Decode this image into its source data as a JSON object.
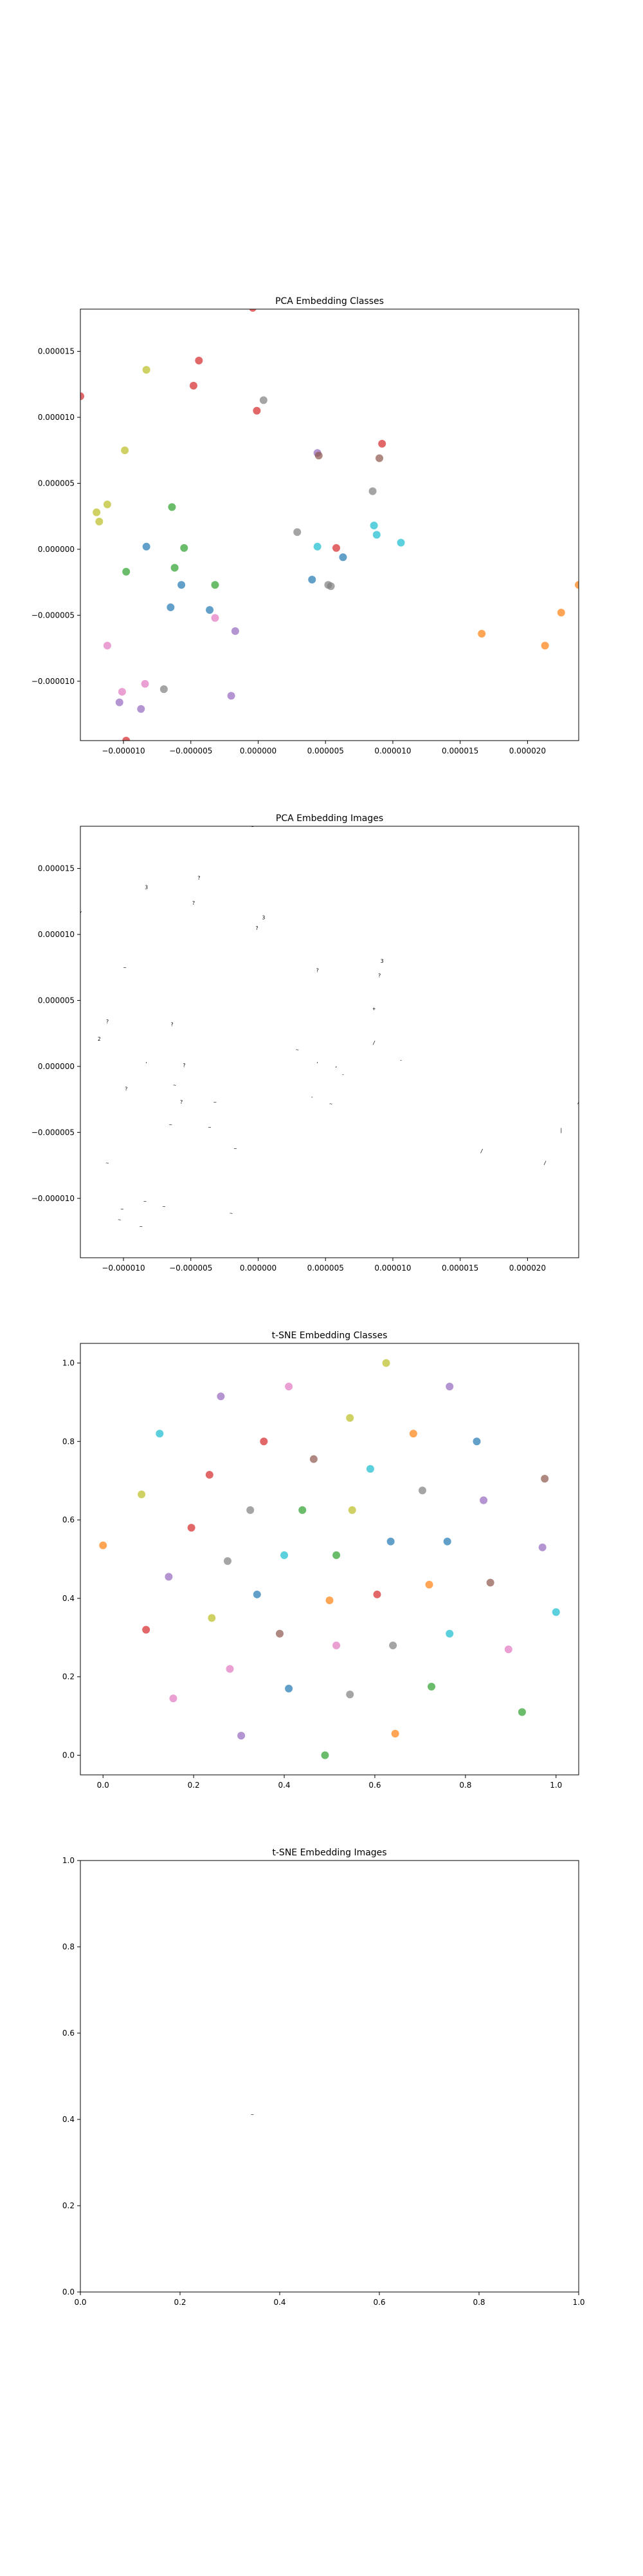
{
  "palette": [
    "#1f77b4",
    "#ff7f0e",
    "#2ca02c",
    "#d62728",
    "#9467bd",
    "#8c564b",
    "#e377c2",
    "#7f7f7f",
    "#bcbd22",
    "#17becf"
  ],
  "chart_data": [
    {
      "type": "scatter",
      "title": "PCA Embedding Classes",
      "markers": "dots",
      "xlim": [
        -1.32e-05,
        2.38e-05
      ],
      "ylim": [
        -1.45e-05,
        1.82e-05
      ],
      "xticks": [
        -1e-05,
        -5e-06,
        0.0,
        5e-06,
        1e-05,
        1.5e-05,
        2e-05
      ],
      "xtick_labels": [
        "−0.000010",
        "−0.000005",
        "0.000000",
        "0.000005",
        "0.000010",
        "0.000015",
        "0.000020"
      ],
      "yticks": [
        -1e-05,
        -5e-06,
        0.0,
        5e-06,
        1e-05,
        1.5e-05
      ],
      "ytick_labels": [
        "−0.000010",
        "−0.000005",
        "0.000000",
        "0.000005",
        "0.000010",
        "0.000015"
      ],
      "points": [
        {
          "x": -1.32e-05,
          "y": 1.16e-05,
          "c": 3
        },
        {
          "x": -4e-07,
          "y": 1.83e-05,
          "c": 3
        },
        {
          "x": -8.3e-06,
          "y": 1.36e-05,
          "c": 8
        },
        {
          "x": -4.4e-06,
          "y": 1.43e-05,
          "c": 3
        },
        {
          "x": -4.8e-06,
          "y": 1.24e-05,
          "c": 3
        },
        {
          "x": 4e-07,
          "y": 1.13e-05,
          "c": 7
        },
        {
          "x": -1e-07,
          "y": 1.05e-05,
          "c": 3
        },
        {
          "x": -9.9e-06,
          "y": 7.5e-06,
          "c": 8
        },
        {
          "x": 4.4e-06,
          "y": 7.3e-06,
          "c": 4
        },
        {
          "x": 4.5e-06,
          "y": 7.1e-06,
          "c": 5
        },
        {
          "x": 9.2e-06,
          "y": 8e-06,
          "c": 3
        },
        {
          "x": 9e-06,
          "y": 6.9e-06,
          "c": 5
        },
        {
          "x": 8.5e-06,
          "y": 4.4e-06,
          "c": 7
        },
        {
          "x": -1.12e-05,
          "y": 3.4e-06,
          "c": 8
        },
        {
          "x": -1.2e-05,
          "y": 2.8e-06,
          "c": 8
        },
        {
          "x": -1.18e-05,
          "y": 2.1e-06,
          "c": 8
        },
        {
          "x": -6.4e-06,
          "y": 3.2e-06,
          "c": 2
        },
        {
          "x": 2.9e-06,
          "y": 1.3e-06,
          "c": 7
        },
        {
          "x": 8.6e-06,
          "y": 1.8e-06,
          "c": 9
        },
        {
          "x": 8.8e-06,
          "y": 1.1e-06,
          "c": 9
        },
        {
          "x": 1.06e-05,
          "y": 5e-07,
          "c": 9
        },
        {
          "x": -8.3e-06,
          "y": 2e-07,
          "c": 0
        },
        {
          "x": -5.5e-06,
          "y": 1e-07,
          "c": 2
        },
        {
          "x": 4.4e-06,
          "y": 2e-07,
          "c": 9
        },
        {
          "x": 5.8e-06,
          "y": 1e-07,
          "c": 3
        },
        {
          "x": 6.3e-06,
          "y": -6e-07,
          "c": 0
        },
        {
          "x": -9.8e-06,
          "y": -1.7e-06,
          "c": 2
        },
        {
          "x": -6.2e-06,
          "y": -1.4e-06,
          "c": 2
        },
        {
          "x": -5.7e-06,
          "y": -2.7e-06,
          "c": 0
        },
        {
          "x": -3.2e-06,
          "y": -2.7e-06,
          "c": 2
        },
        {
          "x": 4e-06,
          "y": -2.3e-06,
          "c": 0
        },
        {
          "x": 5.2e-06,
          "y": -2.7e-06,
          "c": 7
        },
        {
          "x": 5.4e-06,
          "y": -2.8e-06,
          "c": 7
        },
        {
          "x": 2.38e-05,
          "y": -2.7e-06,
          "c": 1
        },
        {
          "x": -6.5e-06,
          "y": -4.4e-06,
          "c": 0
        },
        {
          "x": -3.6e-06,
          "y": -4.6e-06,
          "c": 0
        },
        {
          "x": -3.2e-06,
          "y": -5.2e-06,
          "c": 6
        },
        {
          "x": -1.7e-06,
          "y": -6.2e-06,
          "c": 4
        },
        {
          "x": 1.66e-05,
          "y": -6.4e-06,
          "c": 1
        },
        {
          "x": 2.13e-05,
          "y": -7.3e-06,
          "c": 1
        },
        {
          "x": 2.25e-05,
          "y": -4.8e-06,
          "c": 1
        },
        {
          "x": -1.12e-05,
          "y": -7.3e-06,
          "c": 6
        },
        {
          "x": -8.4e-06,
          "y": -1.02e-05,
          "c": 6
        },
        {
          "x": -1.01e-05,
          "y": -1.08e-05,
          "c": 6
        },
        {
          "x": -7e-06,
          "y": -1.06e-05,
          "c": 7
        },
        {
          "x": -2e-06,
          "y": -1.11e-05,
          "c": 4
        },
        {
          "x": -1.03e-05,
          "y": -1.16e-05,
          "c": 4
        },
        {
          "x": -8.7e-06,
          "y": -1.21e-05,
          "c": 4
        },
        {
          "x": -9.8e-06,
          "y": -1.45e-05,
          "c": 3
        }
      ]
    },
    {
      "type": "scatter",
      "title": "PCA Embedding Images",
      "markers": "glyphs",
      "xlim": [
        -1.32e-05,
        2.38e-05
      ],
      "ylim": [
        -1.45e-05,
        1.82e-05
      ],
      "xticks": [
        -1e-05,
        -5e-06,
        0.0,
        5e-06,
        1e-05,
        1.5e-05,
        2e-05
      ],
      "xtick_labels": [
        "−0.000010",
        "−0.000005",
        "0.000000",
        "0.000005",
        "0.000010",
        "0.000015",
        "0.000020"
      ],
      "yticks": [
        -1e-05,
        -5e-06,
        0.0,
        5e-06,
        1e-05,
        1.5e-05
      ],
      "ytick_labels": [
        "−0.000010",
        "−0.000005",
        "0.000000",
        "0.000005",
        "0.000010",
        "0.000015"
      ],
      "points": [
        {
          "x": -4e-07,
          "y": 1.83e-05,
          "g": "3"
        },
        {
          "x": -1.32e-05,
          "y": 1.16e-05,
          "g": "/"
        },
        {
          "x": -8.3e-06,
          "y": 1.36e-05,
          "g": "3"
        },
        {
          "x": -4.4e-06,
          "y": 1.43e-05,
          "g": "?"
        },
        {
          "x": -4.8e-06,
          "y": 1.24e-05,
          "g": "?"
        },
        {
          "x": 4e-07,
          "y": 1.13e-05,
          "g": "3"
        },
        {
          "x": -1e-07,
          "y": 1.05e-05,
          "g": "?"
        },
        {
          "x": -9.9e-06,
          "y": 7.5e-06,
          "g": "~"
        },
        {
          "x": 4.4e-06,
          "y": 7.3e-06,
          "g": "?"
        },
        {
          "x": 9.2e-06,
          "y": 8e-06,
          "g": "3"
        },
        {
          "x": 9e-06,
          "y": 6.9e-06,
          "g": "?"
        },
        {
          "x": 8.6e-06,
          "y": 4.4e-06,
          "g": "+"
        },
        {
          "x": -1.12e-05,
          "y": 3.4e-06,
          "g": "?"
        },
        {
          "x": -1.18e-05,
          "y": 2.1e-06,
          "g": "2"
        },
        {
          "x": -6.4e-06,
          "y": 3.2e-06,
          "g": "?"
        },
        {
          "x": 2.9e-06,
          "y": 1.3e-06,
          "g": "~"
        },
        {
          "x": 8.6e-06,
          "y": 1.8e-06,
          "g": "/"
        },
        {
          "x": 1.06e-05,
          "y": 5e-07,
          "g": "-"
        },
        {
          "x": -8.3e-06,
          "y": 2e-07,
          "g": "'"
        },
        {
          "x": -5.5e-06,
          "y": 1e-07,
          "g": "?"
        },
        {
          "x": 4.4e-06,
          "y": 2e-07,
          "g": "'"
        },
        {
          "x": 5.8e-06,
          "y": 1e-07,
          "g": ","
        },
        {
          "x": 6.3e-06,
          "y": -6e-07,
          "g": "-"
        },
        {
          "x": -9.8e-06,
          "y": -1.7e-06,
          "g": "?"
        },
        {
          "x": -6.2e-06,
          "y": -1.4e-06,
          "g": "~"
        },
        {
          "x": -5.7e-06,
          "y": -2.7e-06,
          "g": "?"
        },
        {
          "x": -3.2e-06,
          "y": -2.7e-06,
          "g": "~"
        },
        {
          "x": 4e-06,
          "y": -2.3e-06,
          "g": "-"
        },
        {
          "x": 5.4e-06,
          "y": -2.8e-06,
          "g": "~"
        },
        {
          "x": 2.38e-05,
          "y": -2.7e-06,
          "g": "/"
        },
        {
          "x": -6.5e-06,
          "y": -4.4e-06,
          "g": "~"
        },
        {
          "x": -3.6e-06,
          "y": -4.6e-06,
          "g": "~"
        },
        {
          "x": -1.7e-06,
          "y": -6.2e-06,
          "g": "~"
        },
        {
          "x": 1.66e-05,
          "y": -6.4e-06,
          "g": "/"
        },
        {
          "x": 2.13e-05,
          "y": -7.3e-06,
          "g": "/"
        },
        {
          "x": 2.25e-05,
          "y": -4.8e-06,
          "g": "|"
        },
        {
          "x": -1.12e-05,
          "y": -7.3e-06,
          "g": "~"
        },
        {
          "x": -8.4e-06,
          "y": -1.02e-05,
          "g": "~"
        },
        {
          "x": -1.01e-05,
          "y": -1.08e-05,
          "g": "~"
        },
        {
          "x": -7e-06,
          "y": -1.06e-05,
          "g": "~"
        },
        {
          "x": -2e-06,
          "y": -1.11e-05,
          "g": "~"
        },
        {
          "x": -1.03e-05,
          "y": -1.16e-05,
          "g": "~"
        },
        {
          "x": -8.7e-06,
          "y": -1.21e-05,
          "g": "~"
        },
        {
          "x": -9.8e-06,
          "y": -1.45e-05,
          "g": "~"
        }
      ]
    },
    {
      "type": "scatter",
      "title": "t-SNE Embedding Classes",
      "markers": "dots",
      "xlim": [
        -0.05,
        1.05
      ],
      "ylim": [
        -0.05,
        1.05
      ],
      "xticks": [
        0.0,
        0.2,
        0.4,
        0.6,
        0.8,
        1.0
      ],
      "xtick_labels": [
        "0.0",
        "0.2",
        "0.4",
        "0.6",
        "0.8",
        "1.0"
      ],
      "yticks": [
        0.0,
        0.2,
        0.4,
        0.6,
        0.8,
        1.0
      ],
      "ytick_labels": [
        "0.0",
        "0.2",
        "0.4",
        "0.6",
        "0.8",
        "1.0"
      ],
      "points": [
        {
          "x": 0.625,
          "y": 1.0,
          "c": 8
        },
        {
          "x": 0.765,
          "y": 0.94,
          "c": 4
        },
        {
          "x": 0.41,
          "y": 0.94,
          "c": 6
        },
        {
          "x": 0.26,
          "y": 0.915,
          "c": 4
        },
        {
          "x": 0.545,
          "y": 0.86,
          "c": 8
        },
        {
          "x": 0.125,
          "y": 0.82,
          "c": 9
        },
        {
          "x": 0.685,
          "y": 0.82,
          "c": 1
        },
        {
          "x": 0.355,
          "y": 0.8,
          "c": 3
        },
        {
          "x": 0.825,
          "y": 0.8,
          "c": 0
        },
        {
          "x": 0.465,
          "y": 0.755,
          "c": 5
        },
        {
          "x": 0.59,
          "y": 0.73,
          "c": 9
        },
        {
          "x": 0.235,
          "y": 0.715,
          "c": 3
        },
        {
          "x": 0.975,
          "y": 0.705,
          "c": 5
        },
        {
          "x": 0.705,
          "y": 0.675,
          "c": 7
        },
        {
          "x": 0.085,
          "y": 0.665,
          "c": 8
        },
        {
          "x": 0.84,
          "y": 0.65,
          "c": 4
        },
        {
          "x": 0.325,
          "y": 0.625,
          "c": 7
        },
        {
          "x": 0.44,
          "y": 0.625,
          "c": 2
        },
        {
          "x": 0.55,
          "y": 0.625,
          "c": 8
        },
        {
          "x": 0.195,
          "y": 0.58,
          "c": 3
        },
        {
          "x": 0.0,
          "y": 0.535,
          "c": 1
        },
        {
          "x": 0.635,
          "y": 0.545,
          "c": 0
        },
        {
          "x": 0.76,
          "y": 0.545,
          "c": 0
        },
        {
          "x": 0.97,
          "y": 0.53,
          "c": 4
        },
        {
          "x": 0.4,
          "y": 0.51,
          "c": 9
        },
        {
          "x": 0.515,
          "y": 0.51,
          "c": 2
        },
        {
          "x": 0.275,
          "y": 0.495,
          "c": 7
        },
        {
          "x": 0.145,
          "y": 0.455,
          "c": 4
        },
        {
          "x": 0.72,
          "y": 0.435,
          "c": 1
        },
        {
          "x": 0.855,
          "y": 0.44,
          "c": 5
        },
        {
          "x": 0.34,
          "y": 0.41,
          "c": 0
        },
        {
          "x": 0.605,
          "y": 0.41,
          "c": 3
        },
        {
          "x": 0.5,
          "y": 0.395,
          "c": 1
        },
        {
          "x": 1.0,
          "y": 0.365,
          "c": 9
        },
        {
          "x": 0.24,
          "y": 0.35,
          "c": 8
        },
        {
          "x": 0.095,
          "y": 0.32,
          "c": 3
        },
        {
          "x": 0.39,
          "y": 0.31,
          "c": 5
        },
        {
          "x": 0.765,
          "y": 0.31,
          "c": 9
        },
        {
          "x": 0.515,
          "y": 0.28,
          "c": 6
        },
        {
          "x": 0.64,
          "y": 0.28,
          "c": 7
        },
        {
          "x": 0.895,
          "y": 0.27,
          "c": 6
        },
        {
          "x": 0.28,
          "y": 0.22,
          "c": 6
        },
        {
          "x": 0.41,
          "y": 0.17,
          "c": 0
        },
        {
          "x": 0.725,
          "y": 0.175,
          "c": 2
        },
        {
          "x": 0.545,
          "y": 0.155,
          "c": 7
        },
        {
          "x": 0.155,
          "y": 0.145,
          "c": 6
        },
        {
          "x": 0.925,
          "y": 0.11,
          "c": 2
        },
        {
          "x": 0.305,
          "y": 0.05,
          "c": 4
        },
        {
          "x": 0.645,
          "y": 0.055,
          "c": 1
        },
        {
          "x": 0.49,
          "y": 0.0,
          "c": 2
        }
      ]
    },
    {
      "type": "scatter",
      "title": "t-SNE Embedding Images",
      "markers": "glyphs",
      "xlim": [
        0.0,
        1.0
      ],
      "ylim": [
        0.0,
        1.0
      ],
      "xticks": [
        0.0,
        0.2,
        0.4,
        0.6,
        0.8,
        1.0
      ],
      "xtick_labels": [
        "0.0",
        "0.2",
        "0.4",
        "0.6",
        "0.8",
        "1.0"
      ],
      "yticks": [
        0.0,
        0.2,
        0.4,
        0.6,
        0.8,
        1.0
      ],
      "ytick_labels": [
        "0.0",
        "0.2",
        "0.4",
        "0.6",
        "0.8",
        "1.0"
      ],
      "points": [
        {
          "x": 0.345,
          "y": 0.412,
          "g": "~"
        }
      ]
    }
  ]
}
